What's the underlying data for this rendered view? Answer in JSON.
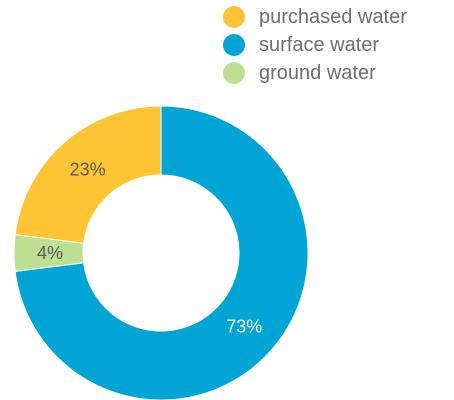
{
  "chart_data": {
    "type": "pie",
    "donut": true,
    "legend_position": "top-right",
    "slices": [
      {
        "label": "surface water",
        "value": 73,
        "display": "73%",
        "color": "#00a5d6",
        "label_color": "#ffffff"
      },
      {
        "label": "ground water",
        "value": 4,
        "display": "4%",
        "color": "#bddf91",
        "label_color": "#58595b"
      },
      {
        "label": "purchased water",
        "value": 23,
        "display": "23%",
        "color": "#fec433",
        "label_color": "#58595b"
      }
    ],
    "legend": [
      {
        "label": "purchased water",
        "color": "#fec433"
      },
      {
        "label": "surface water",
        "color": "#00a5d6"
      },
      {
        "label": "ground water",
        "color": "#bddf91"
      }
    ]
  }
}
